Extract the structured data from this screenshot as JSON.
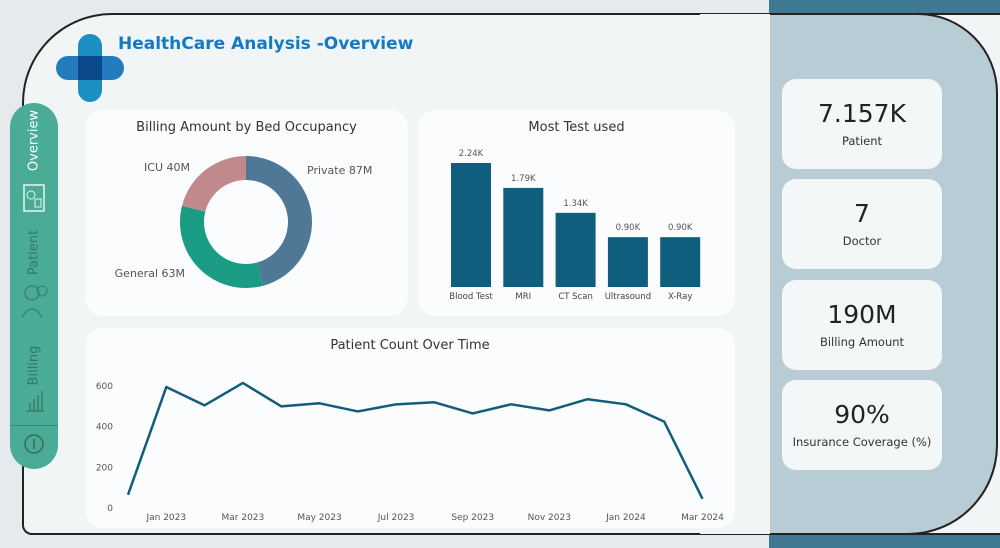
{
  "header": {
    "title": "HealthCare Analysis  -Overview"
  },
  "sidebar": {
    "items": [
      {
        "label": "Overview",
        "icon": "dashboard-icon",
        "active": true
      },
      {
        "label": "Patient",
        "icon": "patient-icon"
      },
      {
        "label": "Billing",
        "icon": "billing-icon"
      }
    ],
    "info_icon": "info-icon"
  },
  "kpis": [
    {
      "value": "7.157K",
      "label": "Patient"
    },
    {
      "value": "7",
      "label": "Doctor"
    },
    {
      "value": "190M",
      "label": "Billing Amount"
    },
    {
      "value": "90%",
      "label": "Insurance Coverage (%)"
    }
  ],
  "chart_data": [
    {
      "type": "pie",
      "title": "Billing Amount by Bed Occupancy",
      "categories": [
        "Private",
        "General",
        "ICU"
      ],
      "values": [
        87,
        63,
        40
      ],
      "labels": [
        "Private 87M",
        "General 63M",
        "ICU 40M"
      ],
      "colors": [
        "#4f7896",
        "#1a9b84",
        "#c08a8c"
      ],
      "donut": true
    },
    {
      "type": "bar",
      "title": "Most Test used",
      "categories": [
        "Blood Test",
        "MRI",
        "CT Scan",
        "Ultrasound",
        "X-Ray"
      ],
      "values": [
        2240,
        1790,
        1340,
        900,
        900
      ],
      "data_labels": [
        "2.24K",
        "1.79K",
        "1.34K",
        "0.90K",
        "0.90K"
      ],
      "color": "#0f5e7e"
    },
    {
      "type": "line",
      "title": "Patient Count Over Time",
      "x": [
        "2022-12",
        "2023-01",
        "2023-02",
        "2023-03",
        "2023-04",
        "2023-05",
        "2023-06",
        "2023-07",
        "2023-08",
        "2023-09",
        "2023-10",
        "2023-11",
        "2023-12",
        "2024-01",
        "2024-02",
        "2024-03"
      ],
      "values": [
        60,
        590,
        500,
        610,
        495,
        510,
        470,
        505,
        515,
        460,
        505,
        475,
        530,
        505,
        420,
        40
      ],
      "ylim": [
        0,
        650
      ],
      "yticks": [
        "0",
        "200",
        "400",
        "600"
      ],
      "xticks": [
        "Jan 2023",
        "Mar 2023",
        "May 2023",
        "Jul 2023",
        "Sep 2023",
        "Nov 2023",
        "Jan 2024",
        "Mar 2024"
      ],
      "color": "#135d7c",
      "grid": false
    }
  ]
}
